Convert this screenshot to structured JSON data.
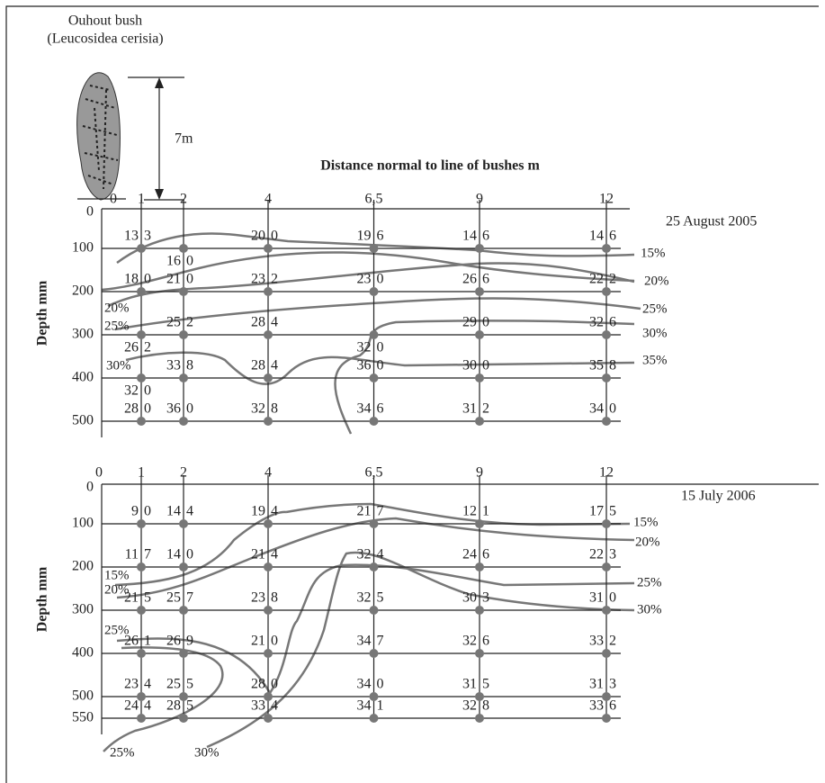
{
  "header": {
    "plant": "Ouhout bush",
    "species": "(Leucosidea cerisia)",
    "height": "7m",
    "x_axis_title": "Distance normal to line of bushes m"
  },
  "panels": [
    {
      "date": "25 August 2005",
      "y_axis_title": "Depth mm",
      "xticks": [
        0,
        1,
        2,
        4,
        {
          "value": 6.5,
          "label": "6,5"
        },
        9,
        12
      ],
      "yticks": [
        0,
        100,
        200,
        300,
        400,
        500
      ],
      "readings": [
        [
          [
            "13",
            "3"
          ],
          [
            "16",
            "0"
          ],
          [
            "20",
            "0"
          ],
          [
            "19",
            "6"
          ],
          [
            "14",
            "6"
          ],
          [
            "14",
            "6"
          ]
        ],
        [
          [
            "18",
            "0"
          ],
          [
            "21",
            "0"
          ],
          [
            "23",
            "2"
          ],
          [
            "23",
            "0"
          ],
          [
            "26",
            "6"
          ],
          [
            "22",
            "2"
          ]
        ],
        [
          [
            "26",
            "2"
          ],
          [
            "25",
            "2"
          ],
          [
            "28",
            "4"
          ],
          [
            "32",
            "0"
          ],
          [
            "29",
            "0"
          ],
          [
            "32",
            "6"
          ]
        ],
        [
          [
            "32",
            "0"
          ],
          [
            "33",
            "8"
          ],
          [
            "28",
            "4"
          ],
          [
            "36",
            "0"
          ],
          [
            "30",
            "0"
          ],
          [
            "35",
            "8"
          ]
        ],
        [
          [
            "28",
            "0"
          ],
          [
            "36",
            "0"
          ],
          [
            "32",
            "8"
          ],
          [
            "34",
            "6"
          ],
          [
            "31",
            "2"
          ],
          [
            "34",
            "0"
          ]
        ]
      ],
      "contour_labels": [
        "15%",
        "20%",
        "25%",
        "30%",
        "35%",
        "20%",
        "25%",
        "30%"
      ]
    },
    {
      "date": "15 July 2006",
      "y_axis_title": "Depth mm",
      "xticks": [
        0,
        1,
        2,
        4,
        {
          "value": 6.5,
          "label": "6,5"
        },
        9,
        12
      ],
      "yticks": [
        0,
        100,
        200,
        300,
        400,
        500,
        550
      ],
      "readings": [
        [
          [
            "9",
            "0"
          ],
          [
            "14",
            "4"
          ],
          [
            "19",
            "4"
          ],
          [
            "21",
            "7"
          ],
          [
            "12",
            "1"
          ],
          [
            "17",
            "5"
          ]
        ],
        [
          [
            "11",
            "7"
          ],
          [
            "14",
            "0"
          ],
          [
            "21",
            "4"
          ],
          [
            "32",
            "4"
          ],
          [
            "24",
            "6"
          ],
          [
            "22",
            "3"
          ]
        ],
        [
          [
            "21",
            "5"
          ],
          [
            "25",
            "7"
          ],
          [
            "23",
            "8"
          ],
          [
            "32",
            "5"
          ],
          [
            "30",
            "3"
          ],
          [
            "31",
            "0"
          ]
        ],
        [
          [
            "26",
            "1"
          ],
          [
            "26",
            "9"
          ],
          [
            "21",
            "0"
          ],
          [
            "34",
            "7"
          ],
          [
            "32",
            "6"
          ],
          [
            "33",
            "2"
          ]
        ],
        [
          [
            "23",
            "4"
          ],
          [
            "25",
            "5"
          ],
          [
            "28",
            "0"
          ],
          [
            "34",
            "0"
          ],
          [
            "31",
            "5"
          ],
          [
            "31",
            "3"
          ]
        ],
        [
          [
            "24",
            "4"
          ],
          [
            "28",
            "5"
          ],
          [
            "33",
            "4"
          ],
          [
            "34",
            "1"
          ],
          [
            "32",
            "8"
          ],
          [
            "33",
            "6"
          ]
        ]
      ],
      "contour_labels": [
        "15%",
        "20%",
        "25%",
        "30%",
        "15%",
        "20%",
        "25%",
        "25%",
        "30%"
      ]
    }
  ]
}
